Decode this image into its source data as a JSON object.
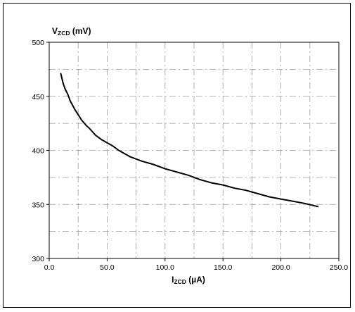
{
  "chart_data": {
    "type": "line",
    "ylabel": {
      "main": "V",
      "sub": "ZCD",
      "unit": " (mV)"
    },
    "xlabel": {
      "main": "I",
      "sub": "ZCD",
      "unit": " (µA)"
    },
    "xlim": [
      0,
      250
    ],
    "ylim": [
      300,
      500
    ],
    "x_ticks": [
      0,
      50,
      100,
      150,
      200,
      250
    ],
    "x_tick_labels": [
      "0.0",
      "50.0",
      "100.0",
      "150.0",
      "200.0",
      "250.0"
    ],
    "y_ticks": [
      300,
      350,
      400,
      450,
      500
    ],
    "y_tick_labels": [
      "300",
      "350",
      "400",
      "450",
      "500"
    ],
    "grid": true,
    "grid_style": "dash-dot",
    "x_grid": [
      25,
      50,
      75,
      100,
      125,
      150,
      175,
      200,
      225
    ],
    "y_grid": [
      325,
      350,
      375,
      400,
      425,
      450,
      475
    ],
    "series": [
      {
        "color": "#000000",
        "points": [
          [
            10,
            471
          ],
          [
            12,
            462
          ],
          [
            14,
            456
          ],
          [
            16,
            452
          ],
          [
            18,
            446
          ],
          [
            20,
            442
          ],
          [
            22,
            438
          ],
          [
            25,
            433
          ],
          [
            28,
            428
          ],
          [
            32,
            423
          ],
          [
            35,
            420
          ],
          [
            40,
            414
          ],
          [
            45,
            410
          ],
          [
            50,
            407
          ],
          [
            55,
            404
          ],
          [
            60,
            400
          ],
          [
            70,
            394
          ],
          [
            80,
            390
          ],
          [
            90,
            387
          ],
          [
            100,
            383
          ],
          [
            110,
            380
          ],
          [
            120,
            377
          ],
          [
            130,
            373
          ],
          [
            140,
            370
          ],
          [
            150,
            368
          ],
          [
            160,
            365
          ],
          [
            170,
            363
          ],
          [
            180,
            360
          ],
          [
            190,
            357
          ],
          [
            200,
            355
          ],
          [
            210,
            353
          ],
          [
            220,
            351
          ],
          [
            232,
            348
          ]
        ]
      }
    ]
  }
}
